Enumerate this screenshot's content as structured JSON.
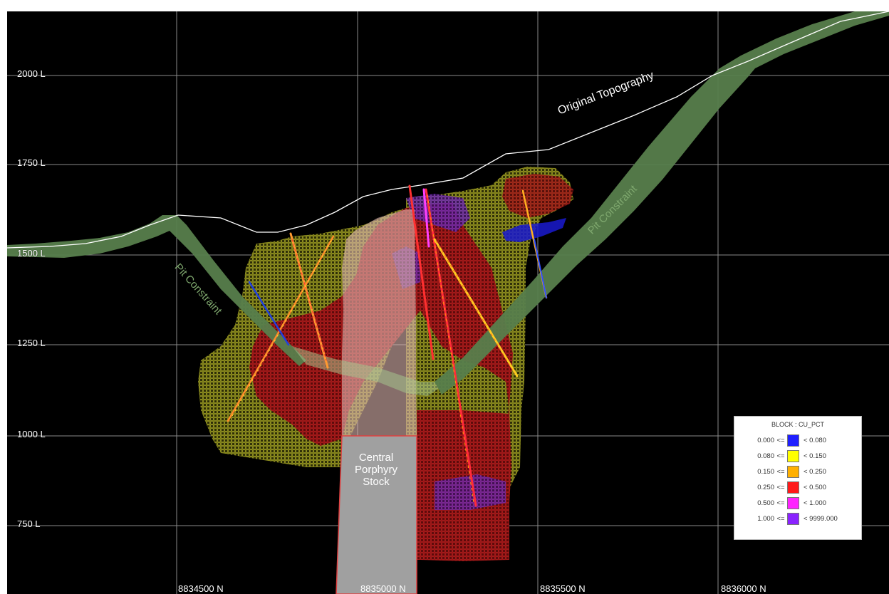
{
  "levels": [
    {
      "label": "2000 L"
    },
    {
      "label": "1750 L"
    },
    {
      "label": "1500 L"
    },
    {
      "label": "1250 L"
    },
    {
      "label": "1000 L"
    },
    {
      "label": "750 L"
    }
  ],
  "northings": [
    {
      "label": "8834500 N"
    },
    {
      "label": "8835000 N"
    },
    {
      "label": "8835500 N"
    },
    {
      "label": "8836000 N"
    }
  ],
  "annotations": {
    "topography": "Original Topography",
    "pit_left": "Pit Constraint",
    "pit_right": "Pit Constraint",
    "stock_line1": "Central",
    "stock_line2": "Porphyry",
    "stock_line3": "Stock"
  },
  "legend": {
    "title": "BLOCK : CU_PCT",
    "rows": [
      {
        "lower": "0.000",
        "op": "<=",
        "upper": "< 0.080",
        "color": "#1f1fff"
      },
      {
        "lower": "0.080",
        "op": "<=",
        "upper": "< 0.150",
        "color": "#ffff00"
      },
      {
        "lower": "0.150",
        "op": "<=",
        "upper": "< 0.250",
        "color": "#ffb000"
      },
      {
        "lower": "0.250",
        "op": "<=",
        "upper": "< 0.500",
        "color": "#ff1a1a"
      },
      {
        "lower": "0.500",
        "op": "<=",
        "upper": "< 1.000",
        "color": "#ff22ff"
      },
      {
        "lower": "1.000",
        "op": "<=",
        "upper": "< 9999.000",
        "color": "#8a22ff"
      }
    ]
  },
  "colors": {
    "pit_shell": "#5b8a50",
    "topography_line": "#ffffff",
    "grid": "#9a9a9a",
    "block_low": "#8a8a1e",
    "block_high": "#8b1a1a",
    "stock": "#c8c8c8"
  }
}
